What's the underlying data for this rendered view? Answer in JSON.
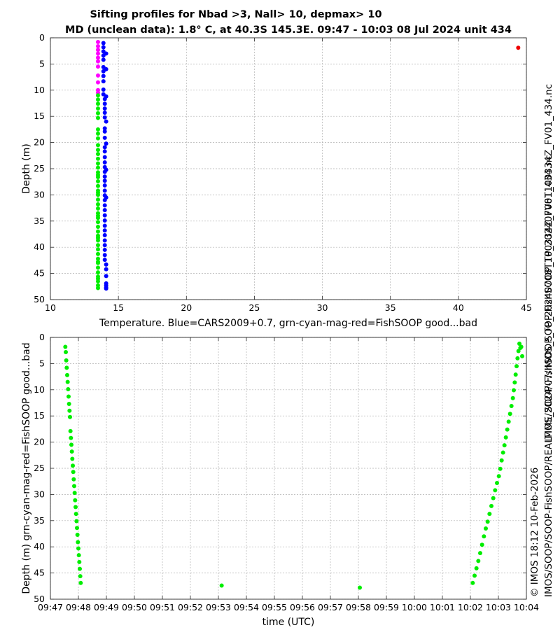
{
  "title_line1": "Sifting profiles for Nbad >3, Nall> 10, depmax> 10",
  "title_line2": "MD (unclean data): 1.8° C, at 40.3S 145.3E. 09:47 - 10:03 08 Jul 2024 unit 434",
  "side_text_right": "IMOS_SOOP-FishSOOP_TP_20240708T100334Z_FV01_434.nc",
  "side_text_footer1": "© IMOS 18:12 10-Feb-2026",
  "side_text_footer2": "IMOS/SOOP/SOOP-FishSOOP/REALTIME/2024/07/IMOS_SOOP-FishSOOP_TP_20240708T100334Z_FV01_434.nc",
  "chart_data": [
    {
      "type": "scatter",
      "xlabel": "Temperature. Blue=CARS2009+0.7, grn-cyan-mag-red=FishSOOP good...bad",
      "ylabel": "Depth (m)",
      "xlim": [
        10,
        45
      ],
      "ylim": [
        0,
        50
      ],
      "y_reversed": true,
      "grid": true,
      "x_ticks": [
        "10",
        "15",
        "20",
        "25",
        "30",
        "35",
        "40",
        "45"
      ],
      "y_ticks": [
        "0",
        "5",
        "10",
        "15",
        "20",
        "25",
        "30",
        "35",
        "40",
        "45",
        "50"
      ],
      "series": [
        {
          "color": "#0000ff",
          "x": [
            13.9,
            13.9,
            13.9,
            13.9,
            13.9,
            13.9,
            13.9,
            13.9,
            13.9,
            13.9,
            13.9,
            14.0,
            14.0,
            14.0,
            14.0,
            14.0,
            14.0,
            14.0,
            14.0,
            14.0,
            14.0,
            14.0,
            14.0,
            14.0,
            14.0,
            14.0,
            14.0,
            14.0,
            14.0,
            14.0,
            14.0,
            14.0,
            14.0,
            14.0,
            14.0,
            14.0,
            14.0,
            14.0,
            14.0,
            14.0,
            14.0,
            14.0,
            14.0,
            14.1,
            14.1,
            14.1,
            14.1,
            14.1,
            14.1,
            14.1,
            14.1,
            14.1,
            14.1,
            14.1,
            14.1,
            14.1,
            14.1
          ],
          "y": [
            1,
            1.8,
            2.6,
            3.4,
            4.2,
            5.6,
            6.4,
            7.3,
            8.3,
            9.9,
            10.8,
            11.7,
            12.6,
            13.5,
            14.3,
            15.2,
            17.3,
            17.9,
            19.1,
            20.9,
            21.7,
            22.8,
            23.8,
            24.7,
            25.6,
            26.5,
            27.3,
            28.2,
            29.2,
            30.1,
            31.0,
            32.0,
            32.9,
            33.9,
            34.9,
            35.9,
            36.8,
            37.7,
            38.7,
            39.6,
            40.5,
            41.5,
            42.4,
            43.3,
            44.2,
            45.5,
            46.9,
            47.3,
            47.7,
            47.9,
            30.5,
            25.2,
            20.2,
            16.0,
            11.2,
            6.0,
            3.0
          ]
        },
        {
          "color": "#ff00ff",
          "x": [
            13.5,
            13.5,
            13.5,
            13.5,
            13.5,
            13.5,
            13.5,
            13.5,
            13.5,
            13.5,
            13.5
          ],
          "y": [
            0.8,
            1.6,
            2.3,
            3.0,
            3.8,
            4.5,
            5.5,
            7.2,
            8.5,
            10.0,
            10.5
          ]
        },
        {
          "color": "#00ee00",
          "x": [
            13.5,
            13.5,
            13.5,
            13.5,
            13.5,
            13.5,
            13.5,
            13.5,
            13.5,
            13.5,
            13.5,
            13.5,
            13.5,
            13.5,
            13.5,
            13.5,
            13.5,
            13.5,
            13.5,
            13.5,
            13.5,
            13.5,
            13.5,
            13.5,
            13.5,
            13.5,
            13.5,
            13.5,
            13.5,
            13.5,
            13.5,
            13.5,
            13.5,
            13.5,
            13.5,
            13.5,
            13.5,
            13.5,
            13.5,
            13.5,
            13.5,
            13.5,
            13.5,
            13.5,
            13.5,
            13.5,
            13.5,
            13.5
          ],
          "y": [
            11.0,
            11.8,
            12.6,
            13.5,
            14.4,
            15.3,
            17.5,
            18.3,
            19.2,
            20.5,
            21.4,
            22.2,
            23.1,
            24.0,
            24.8,
            25.7,
            26.6,
            27.4,
            28.3,
            29.2,
            30.0,
            30.9,
            31.8,
            32.6,
            33.5,
            34.4,
            35.2,
            36.1,
            37.0,
            37.8,
            38.7,
            39.6,
            40.4,
            41.3,
            42.2,
            43.0,
            43.9,
            44.8,
            45.6,
            46.5,
            47.3,
            47.8,
            26.2,
            29.6,
            34.0,
            38.2,
            42.8,
            46.0
          ]
        },
        {
          "color": "#ee0000",
          "x": [
            44.4
          ],
          "y": [
            1.9
          ]
        }
      ]
    },
    {
      "type": "scatter",
      "xlabel": "time (UTC)",
      "ylabel": "Depth (m) grn-cyan-mag-red=FishSOOP good...bad",
      "xlim": [
        "09:47",
        "10:04"
      ],
      "ylim": [
        0,
        50
      ],
      "y_reversed": true,
      "grid": true,
      "x_ticks": [
        "09:47",
        "09:48",
        "09:49",
        "09:50",
        "09:51",
        "09:52",
        "09:53",
        "09:54",
        "09:55",
        "09:56",
        "09:57",
        "09:58",
        "09:59",
        "10:00",
        "10:01",
        "10:02",
        "10:03",
        "10:04"
      ],
      "y_ticks": [
        "0",
        "5",
        "10",
        "15",
        "20",
        "25",
        "30",
        "35",
        "40",
        "45",
        "50"
      ],
      "series": [
        {
          "color": "#00ee00",
          "x": [
            "09:47:32",
            "09:47:33",
            "09:47:34",
            "09:47:35",
            "09:47:36",
            "09:47:37",
            "09:47:38",
            "09:47:39",
            "09:47:40",
            "09:47:41",
            "09:47:42",
            "09:47:43",
            "09:47:44",
            "09:47:45",
            "09:47:46",
            "09:47:47",
            "09:47:48",
            "09:47:49",
            "09:47:50",
            "09:47:51",
            "09:47:52",
            "09:47:53",
            "09:47:54",
            "09:47:55",
            "09:47:56",
            "09:47:57",
            "09:47:58",
            "09:47:59",
            "09:48:00",
            "09:48:01",
            "09:48:02",
            "09:48:03",
            "09:48:04",
            "09:48:05",
            "09:53:07",
            "09:58:03",
            "10:02:05",
            "10:02:09",
            "10:02:13",
            "10:02:17",
            "10:02:21",
            "10:02:25",
            "10:02:29",
            "10:02:33",
            "10:02:37",
            "10:02:41",
            "10:02:45",
            "10:02:49",
            "10:02:53",
            "10:02:57",
            "10:03:01",
            "10:03:04",
            "10:03:07",
            "10:03:10",
            "10:03:13",
            "10:03:16",
            "10:03:19",
            "10:03:22",
            "10:03:25",
            "10:03:28",
            "10:03:31"
          ],
          "y": [
            1.8,
            2.8,
            4.4,
            5.8,
            7.2,
            8.5,
            9.9,
            11.3,
            12.7,
            14.0,
            15.2,
            17.9,
            19.2,
            20.5,
            21.8,
            23.2,
            24.5,
            25.7,
            27.1,
            28.4,
            29.7,
            31.1,
            32.4,
            33.7,
            35.1,
            36.4,
            37.7,
            39.1,
            40.3,
            41.6,
            42.9,
            44.2,
            45.6,
            46.9,
            47.4,
            47.8,
            46.9,
            45.5,
            44.1,
            42.7,
            41.2,
            39.6,
            38.0,
            36.5,
            35.2,
            33.7,
            32.2,
            30.7,
            29.2,
            27.8,
            26.5,
            25.1,
            23.5,
            22.0,
            20.6,
            19.1,
            17.6,
            16.1,
            14.6,
            13.1,
            11.6
          ]
        },
        {
          "color": "#00ee00",
          "x": [
            "10:03:33",
            "10:03:35",
            "10:03:37",
            "10:03:39",
            "10:03:41",
            "10:03:43",
            "10:03:45",
            "10:03:47",
            "10:03:49",
            "10:03:51"
          ],
          "y": [
            10.1,
            8.6,
            7.1,
            5.5,
            4.0,
            2.6,
            1.2,
            2.0,
            1.8,
            3.6
          ]
        }
      ]
    }
  ]
}
